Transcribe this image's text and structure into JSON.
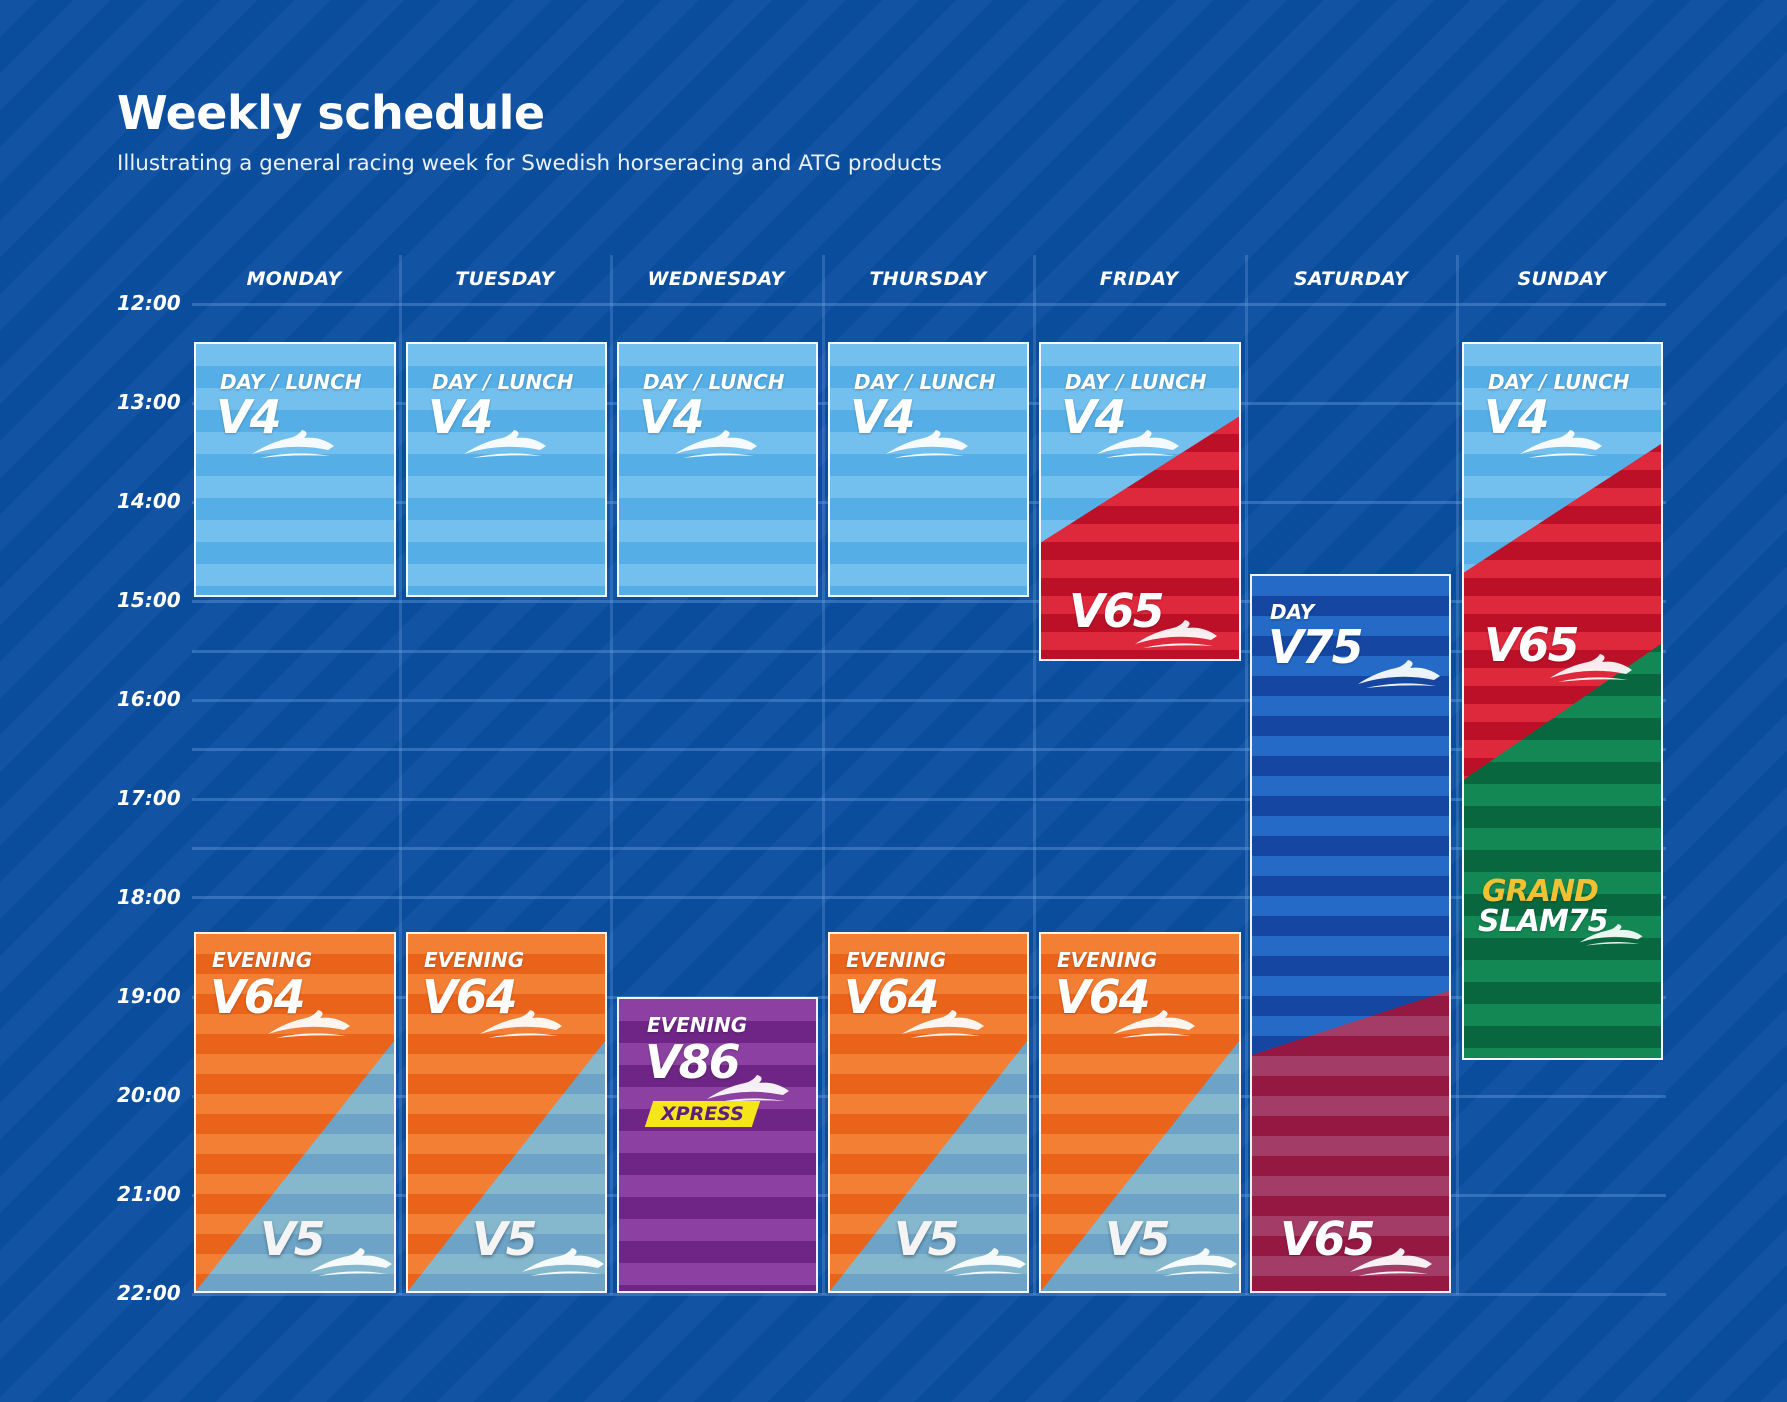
{
  "header": {
    "title": "Weekly schedule",
    "subtitle": "Illustrating a general racing week for Swedish horseracing and ATG products"
  },
  "times": [
    "12:00",
    "13:00",
    "14:00",
    "15:00",
    "16:00",
    "17:00",
    "18:00",
    "19:00",
    "20:00",
    "21:00",
    "22:00"
  ],
  "days": [
    "MONDAY",
    "TUESDAY",
    "WEDNESDAY",
    "THURSDAY",
    "FRIDAY",
    "SATURDAY",
    "SUNDAY"
  ],
  "labels": {
    "day_lunch": "DAY / LUNCH",
    "evening": "EVENING",
    "day": "DAY",
    "v4": "V4",
    "v5": "V5",
    "v64": "V64",
    "v65": "V65",
    "v75": "V75",
    "v86": "V86",
    "xpress": "XPRESS",
    "grand": "GRAND",
    "slam75": "SLAM75"
  },
  "colors": {
    "background": "#0a4fa0",
    "v4_lightblue": "#5cb5ea",
    "v64_orange": "#ef6a1e",
    "v65_red": "#d0162e",
    "v86_purple": "#7b2e90",
    "v75_blue": "#1a57b8",
    "grand_slam_green": "#0b7a48",
    "xpress_yellow": "#f5e61a",
    "grand_gold": "#f0c233"
  },
  "icons": [
    "horse-head-icon"
  ]
}
